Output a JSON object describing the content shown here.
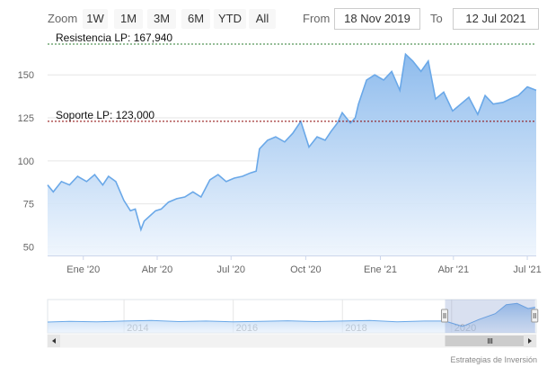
{
  "toolbar": {
    "zoom_label": "Zoom",
    "buttons": [
      "1W",
      "1M",
      "3M",
      "6M",
      "YTD",
      "All"
    ],
    "from_label": "From",
    "from_value": "18 Nov 2019",
    "to_label": "To",
    "to_value": "12 Jul 2021"
  },
  "credit": "Estrategias de Inversión",
  "colors": {
    "line": "#6aa8e8",
    "fill_top": "#88b8ec",
    "resistance": "#2e7d32",
    "support": "#8b0000"
  },
  "chart_data": {
    "type": "area",
    "xlabel": "",
    "ylabel": "",
    "ylim": [
      45,
      170
    ],
    "xlim": [
      "2019-11-18",
      "2021-07-12"
    ],
    "y_ticks": [
      50,
      75,
      100,
      125,
      150
    ],
    "x_ticks": [
      {
        "label": "Ene '20",
        "date": "2020-01-01"
      },
      {
        "label": "Abr '20",
        "date": "2020-04-01"
      },
      {
        "label": "Jul '20",
        "date": "2020-07-01"
      },
      {
        "label": "Oct '20",
        "date": "2020-10-01"
      },
      {
        "label": "Ene '21",
        "date": "2021-01-01"
      },
      {
        "label": "Abr '21",
        "date": "2021-04-01"
      },
      {
        "label": "Jul '21",
        "date": "2021-07-01"
      }
    ],
    "plot_lines": [
      {
        "label": "Resistencia LP: 167,940",
        "value": 167.94,
        "style": "dotted",
        "color": "#2e7d32"
      },
      {
        "label": "Soporte LP: 123,000",
        "value": 123.0,
        "style": "dotted",
        "color": "#8b0000"
      }
    ],
    "series": [
      {
        "x": [
          "2019-11-18",
          "2019-11-25",
          "2019-12-05",
          "2019-12-15",
          "2019-12-25",
          "2020-01-05",
          "2020-01-15",
          "2020-01-25",
          "2020-02-01",
          "2020-02-10",
          "2020-02-20",
          "2020-02-28",
          "2020-03-05",
          "2020-03-12",
          "2020-03-16",
          "2020-03-23",
          "2020-03-30",
          "2020-04-06",
          "2020-04-15",
          "2020-04-25",
          "2020-05-05",
          "2020-05-15",
          "2020-05-25",
          "2020-06-05",
          "2020-06-15",
          "2020-06-25",
          "2020-07-05",
          "2020-07-15",
          "2020-07-25",
          "2020-08-01",
          "2020-08-05",
          "2020-08-15",
          "2020-08-25",
          "2020-09-05",
          "2020-09-15",
          "2020-09-25",
          "2020-10-05",
          "2020-10-15",
          "2020-10-25",
          "2020-11-01",
          "2020-11-09",
          "2020-11-15",
          "2020-11-25",
          "2020-12-01",
          "2020-12-05",
          "2020-12-15",
          "2020-12-25",
          "2021-01-05",
          "2021-01-15",
          "2021-01-25",
          "2021-02-01",
          "2021-02-10",
          "2021-02-20",
          "2021-03-01",
          "2021-03-10",
          "2021-03-20",
          "2021-03-31",
          "2021-04-10",
          "2021-04-20",
          "2021-05-01",
          "2021-05-10",
          "2021-05-20",
          "2021-06-01",
          "2021-06-10",
          "2021-06-20",
          "2021-07-01",
          "2021-07-12"
        ],
        "y": [
          86,
          82,
          88,
          86,
          91,
          88,
          92,
          86,
          91,
          88,
          77,
          71,
          72,
          60,
          65,
          68,
          71,
          72,
          76,
          78,
          79,
          82,
          79,
          89,
          92,
          88,
          90,
          91,
          93,
          94,
          107,
          112,
          114,
          111,
          116,
          123,
          108,
          114,
          112,
          117,
          122,
          128,
          122,
          125,
          133,
          147,
          150,
          147,
          152,
          141,
          162,
          158,
          152,
          158,
          136,
          140,
          129,
          133,
          137,
          127,
          138,
          133,
          134,
          136,
          138,
          143,
          141
        ]
      }
    ]
  },
  "navigator_data": {
    "x_ticks": [
      "2014",
      "2016",
      "2018",
      "2020"
    ],
    "x_range": [
      2012.6,
      2021.55
    ],
    "selected_range": [
      2019.88,
      2021.53
    ],
    "series": {
      "x": [
        2012.6,
        2013.0,
        2013.5,
        2014.0,
        2014.5,
        2015.0,
        2015.5,
        2016.0,
        2016.5,
        2017.0,
        2017.5,
        2018.0,
        2018.5,
        2019.0,
        2019.5,
        2019.88,
        2020.2,
        2020.5,
        2020.8,
        2021.0,
        2021.2,
        2021.4,
        2021.53
      ],
      "y": [
        82,
        85,
        83,
        86,
        88,
        84,
        86,
        83,
        85,
        87,
        84,
        86,
        88,
        83,
        86,
        86,
        65,
        92,
        115,
        150,
        155,
        135,
        140
      ]
    }
  }
}
